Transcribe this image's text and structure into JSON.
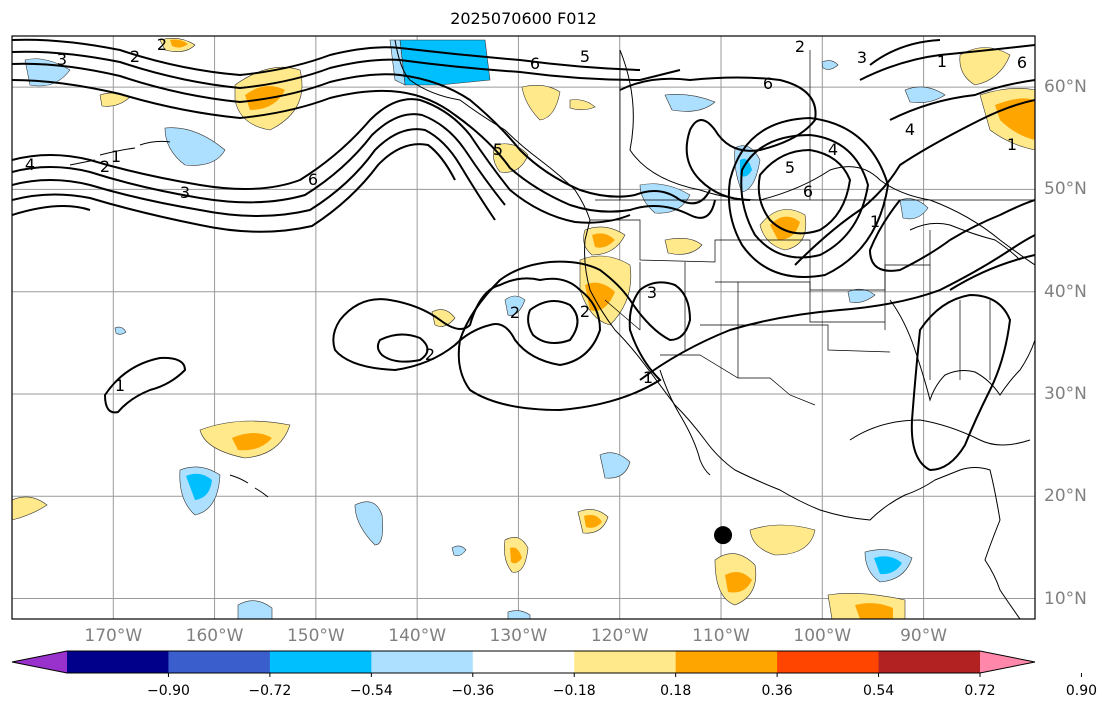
{
  "title": "2025070600 F012",
  "map": {
    "projection": "lat-lon",
    "extent": {
      "lon_min": -180,
      "lon_max": -79,
      "lat_min": 8,
      "lat_max": 65
    },
    "grid": true,
    "lon_ticks": [
      "170°W",
      "160°W",
      "150°W",
      "140°W",
      "130°W",
      "120°W",
      "110°W",
      "100°W",
      "90°W"
    ],
    "lat_ticks": [
      "60°N",
      "50°N",
      "40°N",
      "30°N",
      "20°N",
      "10°N"
    ],
    "marker": {
      "name": "point-marker",
      "lon": -109.8,
      "lat": 16.2,
      "color": "#000000"
    },
    "contour_labels": [
      "3",
      "2",
      "2",
      "5",
      "6",
      "6",
      "6",
      "3",
      "2",
      "3",
      "6",
      "4",
      "5",
      "4",
      "6",
      "1",
      "1",
      "1",
      "2",
      "3",
      "2",
      "2",
      "1",
      "1",
      "1",
      "4",
      "5",
      "2"
    ]
  },
  "colorbar": {
    "ticks": [
      "−0.90",
      "−0.72",
      "−0.54",
      "−0.36",
      "−0.18",
      "0.18",
      "0.36",
      "0.54",
      "0.72",
      "0.90"
    ],
    "colors": [
      "#9932CC",
      "#00008B",
      "#3A5FCD",
      "#00BFFF",
      "#ADDFFF",
      "#FFFFFF",
      "#FFE98A",
      "#FFA500",
      "#FF4500",
      "#B22222",
      "#FF88AA"
    ]
  }
}
